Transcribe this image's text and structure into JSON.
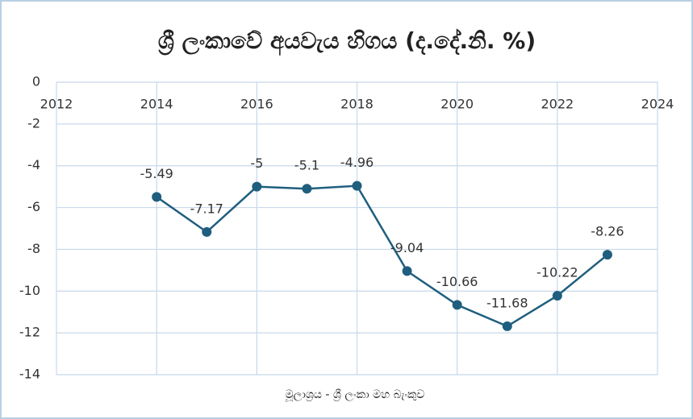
{
  "chart_data": {
    "type": "line",
    "title": "ශ්‍රී ලංකාවේ අයවැය හිගය (ද.දේ.නි. %)",
    "source": "මූලාශ්‍රය - ශ්‍රී ලංකා මහ බැංකුව",
    "x": [
      2014,
      2015,
      2016,
      2017,
      2018,
      2019,
      2020,
      2021,
      2022,
      2023
    ],
    "values": [
      -5.49,
      -7.17,
      -5,
      -5.1,
      -4.96,
      -9.04,
      -10.66,
      -11.68,
      -10.22,
      -8.26
    ],
    "color": "#1f5e7e",
    "xlim": [
      2012,
      2024
    ],
    "xticks": [
      2012,
      2014,
      2016,
      2018,
      2020,
      2022,
      2024
    ],
    "ylim": [
      -14,
      0
    ],
    "yticks": [
      0,
      -2,
      -4,
      -6,
      -8,
      -10,
      -12,
      -14
    ],
    "grid": true
  }
}
